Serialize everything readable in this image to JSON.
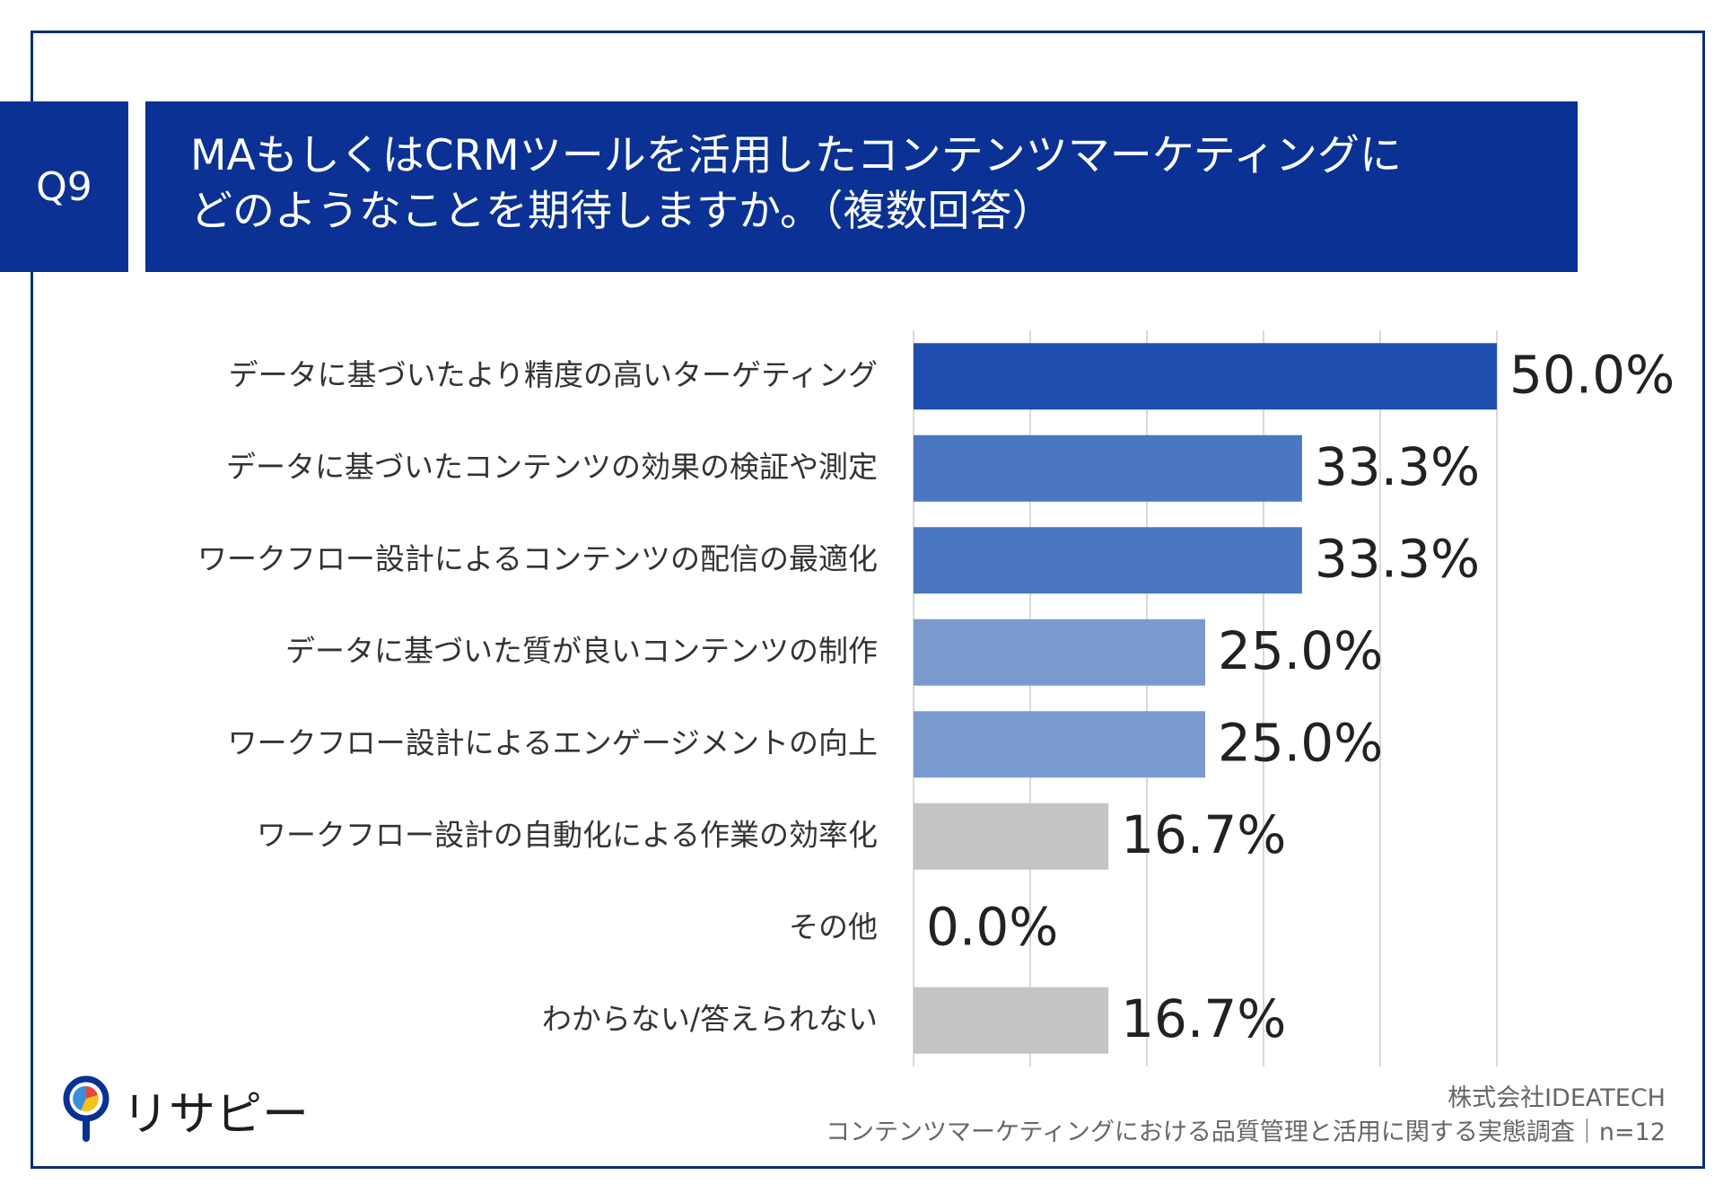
{
  "question_id": "Q9",
  "title": {
    "line1": "MAもしくはCRMツールを活用したコンテンツマーケティングに",
    "line2": "どのようなことを期待しますか。（複数回答）"
  },
  "chart_data": {
    "type": "bar",
    "orientation": "horizontal",
    "categories": [
      "データに基づいたより精度の高いターゲティング",
      "データに基づいたコンテンツの効果の検証や測定",
      "ワークフロー設計によるコンテンツの配信の最適化",
      "データに基づいた質が良いコンテンツの制作",
      "ワークフロー設計によるエンゲージメントの向上",
      "ワークフロー設計の自動化による作業の効率化",
      "その他",
      "わからない/答えられない"
    ],
    "values": [
      50.0,
      33.3,
      33.3,
      25.0,
      25.0,
      16.7,
      0.0,
      16.7
    ],
    "value_labels": [
      "50.0%",
      "33.3%",
      "33.3%",
      "25.0%",
      "25.0%",
      "16.7%",
      "0.0%",
      "16.7%"
    ],
    "bar_colors": [
      "#1f4fae",
      "#4a76c2",
      "#4a76c2",
      "#7b9ad0",
      "#7b9ad0",
      "#c4c4c4",
      "#c4c4c4",
      "#c4c4c4"
    ],
    "xlim": [
      0,
      50
    ],
    "grid": true,
    "unit": "%"
  },
  "logo": {
    "text": "リサピー"
  },
  "footer": {
    "company": "株式会社IDEATECH",
    "survey": "コンテンツマーケティングにおける品質管理と活用に関する実態調査｜n=12"
  }
}
